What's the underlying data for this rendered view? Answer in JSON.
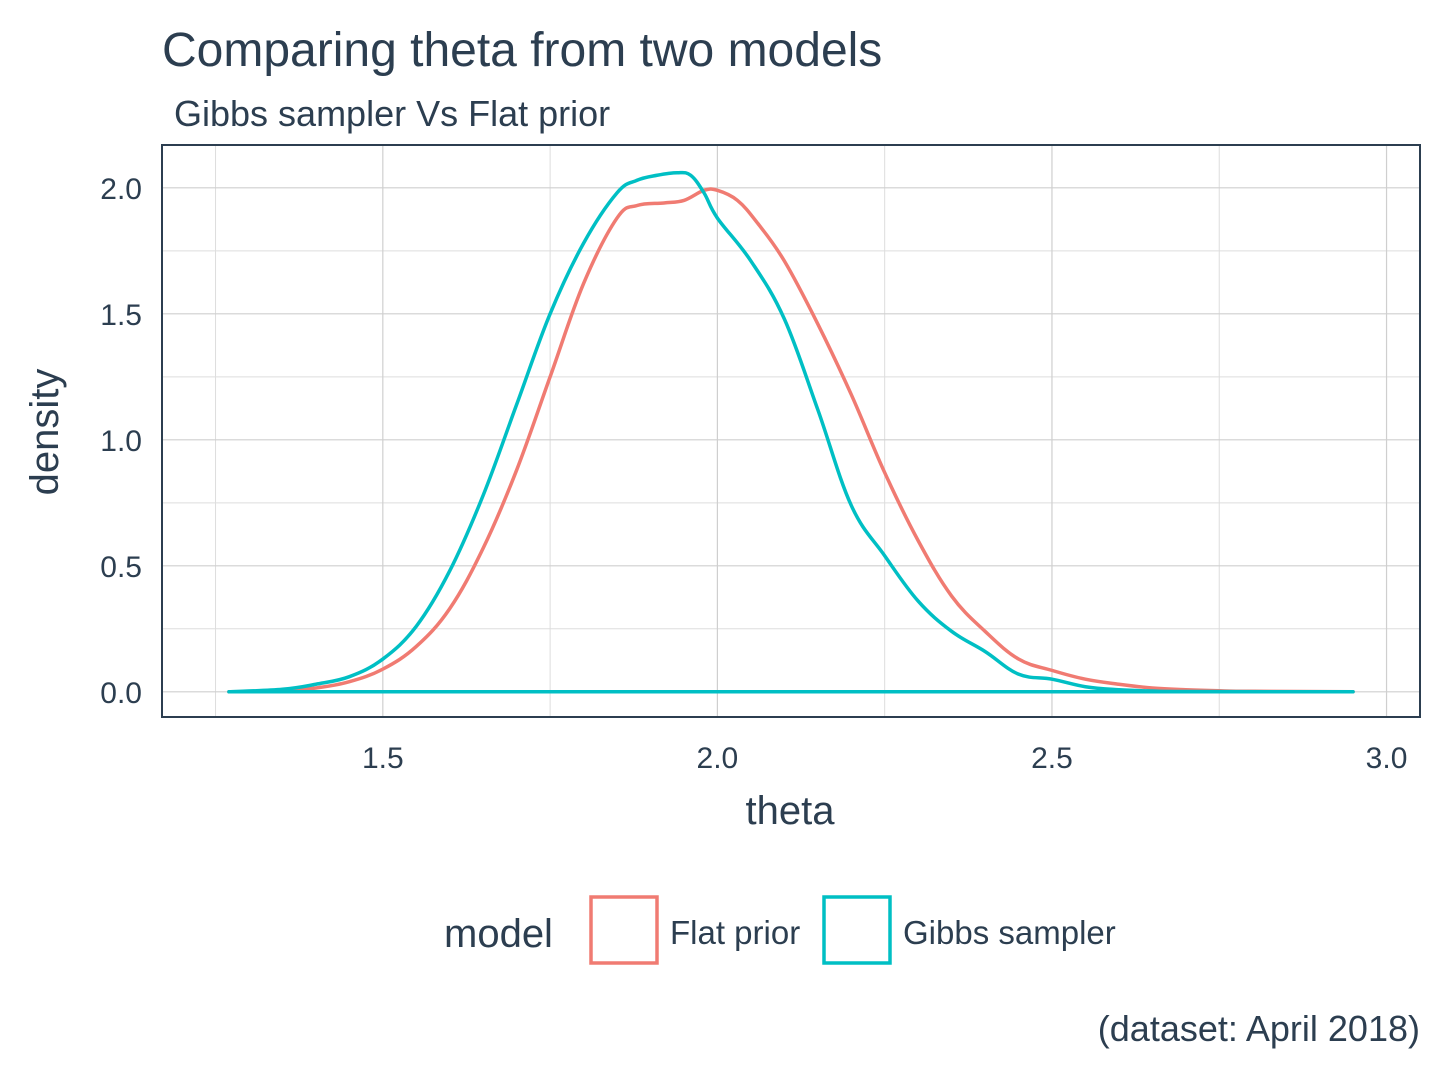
{
  "chart_data": {
    "type": "line",
    "title": "Comparing theta from two models",
    "subtitle": "Gibbs sampler Vs Flat prior",
    "xlabel": "theta",
    "ylabel": "density",
    "caption": "(dataset: April 2018)",
    "xlim": [
      1.17,
      3.05
    ],
    "ylim": [
      -0.1,
      2.17
    ],
    "x_ticks": [
      {
        "value": 1.5,
        "label": "1.5"
      },
      {
        "value": 2.0,
        "label": "2.0"
      },
      {
        "value": 2.5,
        "label": "2.5"
      },
      {
        "value": 3.0,
        "label": "3.0"
      }
    ],
    "y_ticks": [
      {
        "value": 0.0,
        "label": "0.0"
      },
      {
        "value": 0.5,
        "label": "0.5"
      },
      {
        "value": 1.0,
        "label": "1.0"
      },
      {
        "value": 1.5,
        "label": "1.5"
      },
      {
        "value": 2.0,
        "label": "2.0"
      }
    ],
    "x_minor_ticks": [
      1.25,
      1.75,
      2.25,
      2.75
    ],
    "y_minor_ticks": [
      0.25,
      0.75,
      1.25,
      1.75
    ],
    "grid": true,
    "legend": {
      "title": "model",
      "position": "bottom"
    },
    "series": [
      {
        "name": "Flat prior",
        "color": "#f07b72",
        "x": [
          1.27,
          1.35,
          1.4,
          1.45,
          1.5,
          1.55,
          1.6,
          1.65,
          1.7,
          1.75,
          1.8,
          1.85,
          1.88,
          1.92,
          1.95,
          1.98,
          2.0,
          2.03,
          2.06,
          2.1,
          2.15,
          2.2,
          2.25,
          2.3,
          2.35,
          2.4,
          2.45,
          2.5,
          2.55,
          2.6,
          2.65,
          2.7,
          2.75,
          2.8,
          2.95
        ],
        "values": [
          0.0,
          0.005,
          0.015,
          0.04,
          0.09,
          0.18,
          0.33,
          0.57,
          0.88,
          1.25,
          1.62,
          1.88,
          1.93,
          1.94,
          1.95,
          1.99,
          1.99,
          1.95,
          1.86,
          1.71,
          1.46,
          1.18,
          0.87,
          0.6,
          0.38,
          0.24,
          0.13,
          0.085,
          0.05,
          0.03,
          0.015,
          0.008,
          0.004,
          0.002,
          0.0
        ]
      },
      {
        "name": "Gibbs sampler",
        "color": "#00bfc4",
        "x": [
          1.27,
          1.35,
          1.4,
          1.45,
          1.5,
          1.55,
          1.6,
          1.65,
          1.7,
          1.75,
          1.8,
          1.85,
          1.88,
          1.91,
          1.94,
          1.96,
          1.98,
          2.0,
          2.05,
          2.1,
          2.15,
          2.2,
          2.25,
          2.3,
          2.35,
          2.4,
          2.45,
          2.5,
          2.55,
          2.6,
          2.65,
          2.7,
          2.95
        ],
        "values": [
          0.0,
          0.01,
          0.03,
          0.06,
          0.13,
          0.26,
          0.48,
          0.78,
          1.14,
          1.5,
          1.78,
          1.98,
          2.03,
          2.05,
          2.06,
          2.05,
          1.98,
          1.88,
          1.71,
          1.48,
          1.12,
          0.74,
          0.54,
          0.36,
          0.24,
          0.16,
          0.07,
          0.05,
          0.02,
          0.008,
          0.003,
          0.001,
          0.0
        ]
      }
    ]
  }
}
